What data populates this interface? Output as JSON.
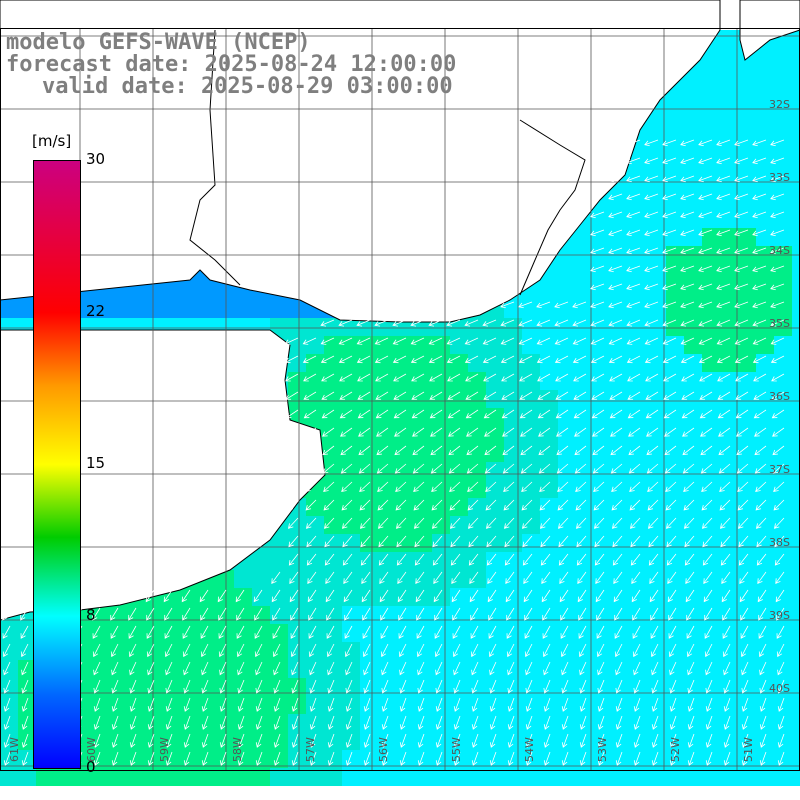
{
  "title": {
    "line1": "modelo GEFS-WAVE (NCEP)",
    "line2": "forecast date: 2025-08-24 12:00:00",
    "line3": "valid date: 2025-08-29 03:00:00"
  },
  "colorbar": {
    "units": "[m/s]",
    "ticks": [
      "30",
      "22",
      "15",
      "8",
      "0"
    ],
    "tick_values": [
      30,
      22,
      15,
      8,
      0
    ],
    "colors": [
      "#cc0080",
      "#ff0000",
      "#ff9900",
      "#ffff00",
      "#00cc00",
      "#00ffff",
      "#0066ff",
      "#0000ff"
    ]
  },
  "map": {
    "lat_labels": [
      "32S",
      "33S",
      "34S",
      "35S",
      "36S",
      "37S",
      "38S",
      "39S",
      "40S"
    ],
    "lon_labels": [
      "61W",
      "60W",
      "59W",
      "58W",
      "57W",
      "56W",
      "55W",
      "54W",
      "53W",
      "52W",
      "51W"
    ],
    "field_colors": {
      "cyan": "#00f0ff",
      "aqua": "#00e6d2",
      "green": "#00ee88",
      "blue": "#0099ff"
    },
    "wind_direction": "from NE to SW"
  }
}
